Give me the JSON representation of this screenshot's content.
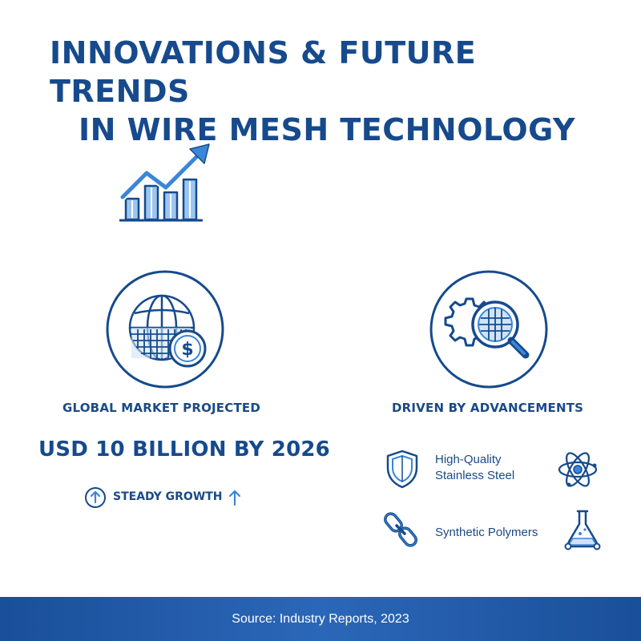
{
  "header": {
    "title_line1": "INNOVATIONS & FUTURE TRENDS",
    "title_line2": "IN WIRE MESH TECHNOLOGY"
  },
  "market": {
    "label": "GLOBAL MARKET PROJECTED",
    "value": "USD 10 BILLION BY 2026",
    "growth_label": "STEADY GROWTH"
  },
  "drivers": {
    "label": "DRIVEN BY ADVANCEMENTS",
    "items": [
      {
        "line1": "High-Quality",
        "line2": "Stainless Steel",
        "icon": "shield-icon"
      },
      {
        "line1": "Synthetic Polymers",
        "icon": "chain-icon"
      }
    ],
    "extra_icons": [
      "atom-icon",
      "flask-icon"
    ]
  },
  "footer": {
    "source": "Source: Industry Reports, 2023"
  },
  "colors": {
    "primary": "#164a8c",
    "accent": "#3a86d8",
    "light_accent": "#9cc6f0",
    "footer_bg": "#1f58a6"
  },
  "icons": {
    "trend": "bar-chart-trend-up-icon",
    "globe": "globe-dollar-icon",
    "gear": "gear-magnifier-icon",
    "growth": "arrow-up-circle-icon"
  }
}
